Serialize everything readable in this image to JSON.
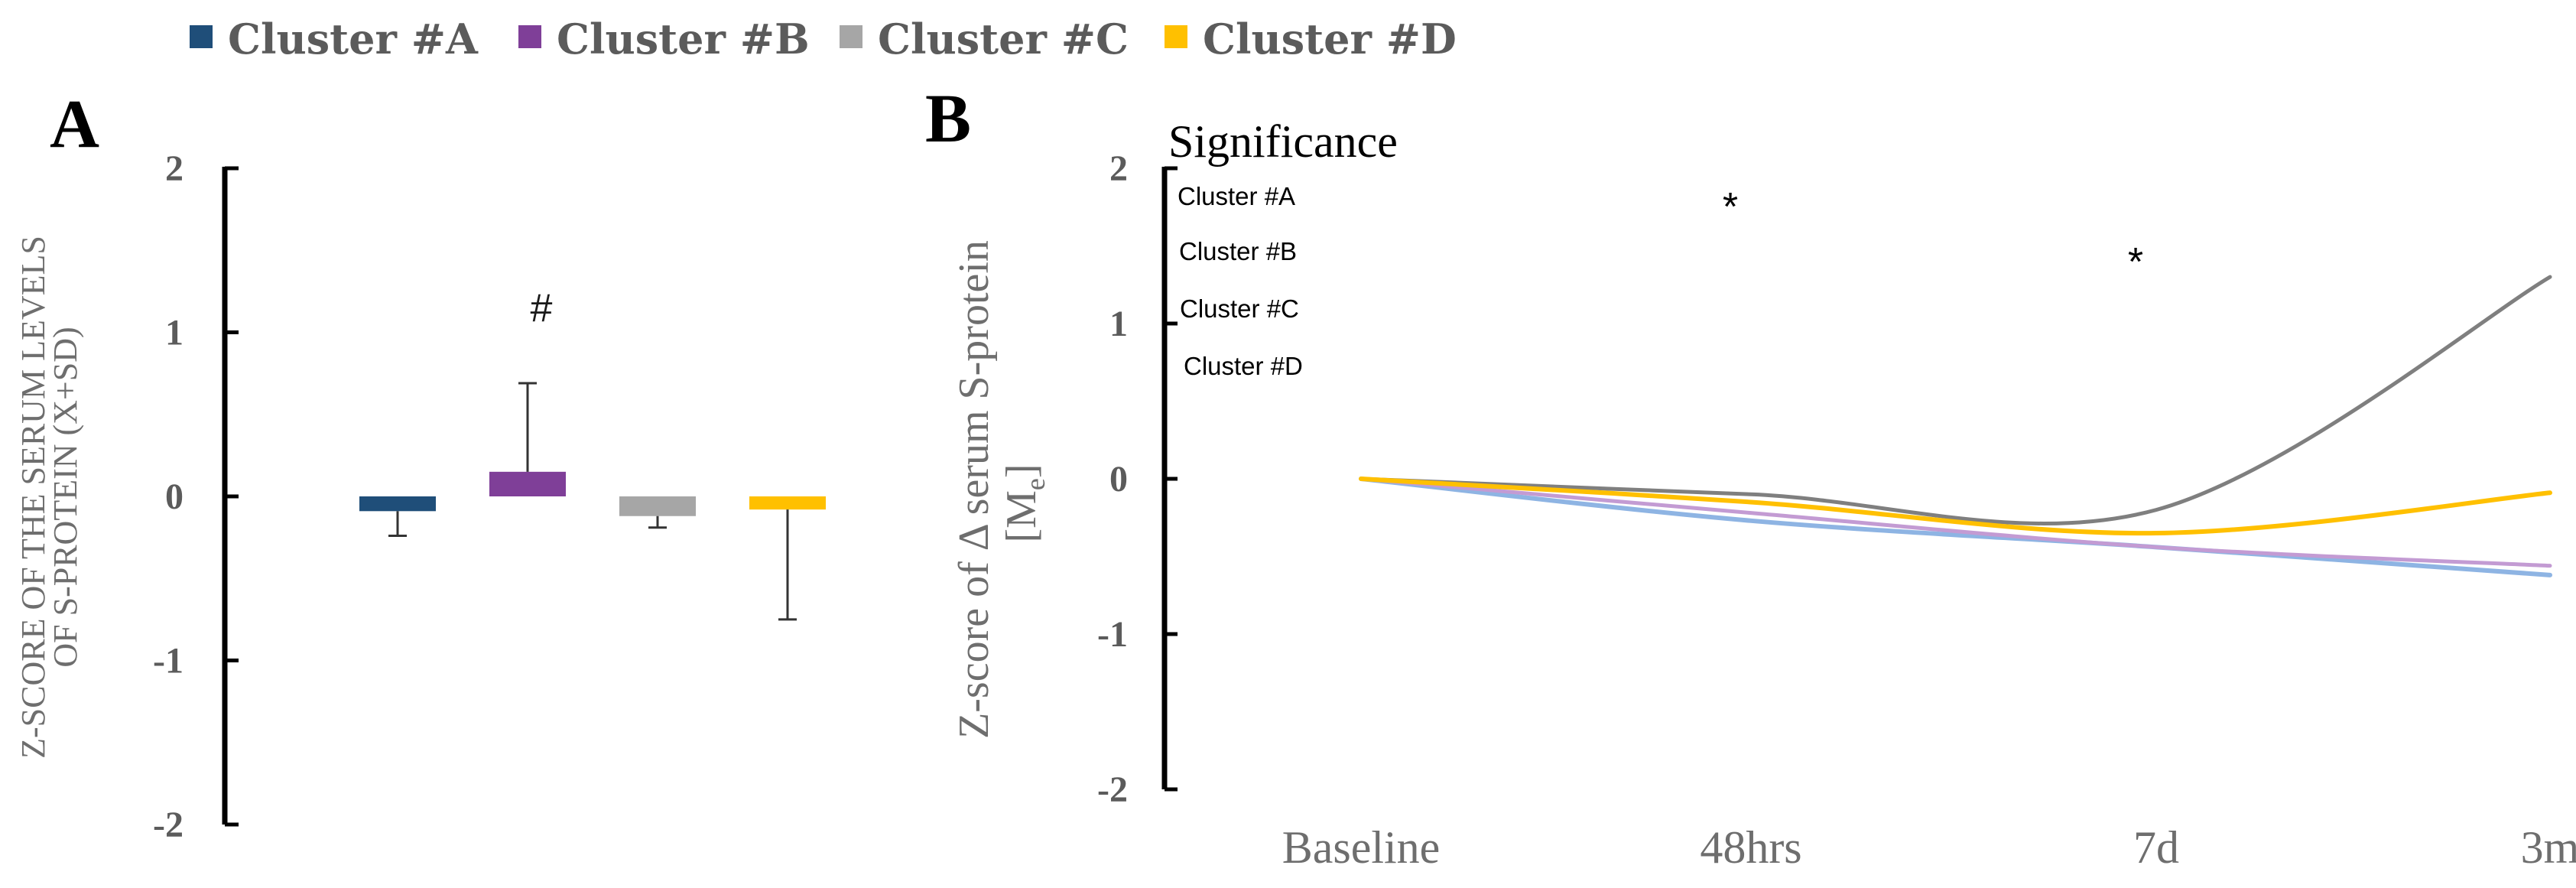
{
  "legend": [
    {
      "label": "Cluster #A",
      "color": "#1f4e79"
    },
    {
      "label": "Cluster #B",
      "color": "#7f3f98"
    },
    {
      "label": "Cluster #C",
      "color": "#a6a6a6"
    },
    {
      "label": "Cluster #D",
      "color": "#ffc000"
    }
  ],
  "chart_data": [
    {
      "panel": "A",
      "type": "bar",
      "categories": [
        "Cluster #A",
        "Cluster #B",
        "Cluster #C",
        "Cluster #D"
      ],
      "values": [
        -0.09,
        0.15,
        -0.12,
        -0.08
      ],
      "error_low": [
        -0.24,
        null,
        -0.19,
        -0.75
      ],
      "error_high": [
        null,
        0.69,
        null,
        null
      ],
      "colors": [
        "#1f4e79",
        "#7f3f98",
        "#a6a6a6",
        "#ffc000"
      ],
      "annotation": {
        "category": "Cluster #B",
        "text": "#",
        "y": 1.15
      },
      "ylabel_lines": [
        "Z-SCORE OF THE SERUM LEVELS",
        "OF S-PROTEIN (X+SD)"
      ],
      "ylim": [
        -2,
        2
      ],
      "yticks": [
        2,
        1,
        0,
        -1,
        -2
      ],
      "ytick_labels": [
        "2",
        "1",
        "0",
        "-1",
        "-2"
      ]
    },
    {
      "panel": "B",
      "type": "line",
      "categories": [
        "Baseline",
        "48hrs",
        "7d",
        "3m"
      ],
      "series": [
        {
          "name": "Cluster #A",
          "color": "#8eb4e3",
          "values": [
            0,
            -0.27,
            -0.44,
            -0.62
          ]
        },
        {
          "name": "Cluster #B",
          "color": "#c39bd3",
          "values": [
            0,
            -0.22,
            -0.44,
            -0.56
          ]
        },
        {
          "name": "Cluster #C",
          "color": "#7f7f7f",
          "values": [
            0,
            -0.1,
            -0.2,
            1.3
          ]
        },
        {
          "name": "Cluster #D",
          "color": "#ffc000",
          "values": [
            0,
            -0.15,
            -0.35,
            -0.09
          ]
        }
      ],
      "ylabel_main": "Z-score of Δ serum S-protein",
      "ylabel_unit": "[M",
      "ylabel_unit_sub": "e",
      "ylabel_unit_end": "]",
      "ylim": [
        -2,
        2
      ],
      "yticks": [
        2,
        1,
        0,
        -1,
        -2
      ],
      "ytick_labels": [
        "2",
        "1",
        "0",
        "-1",
        "-2"
      ],
      "significance_title": "Significance",
      "significance_rows": [
        "Cluster #A",
        "Cluster #B",
        "Cluster #C",
        "Cluster #D"
      ],
      "significance_marks": [
        {
          "category": "48hrs",
          "row": "Cluster #A",
          "text": "*"
        },
        {
          "category": "7d",
          "row": "Cluster #B",
          "text": "*"
        }
      ]
    }
  ],
  "panels": {
    "a_label": "A",
    "b_label": "B"
  }
}
